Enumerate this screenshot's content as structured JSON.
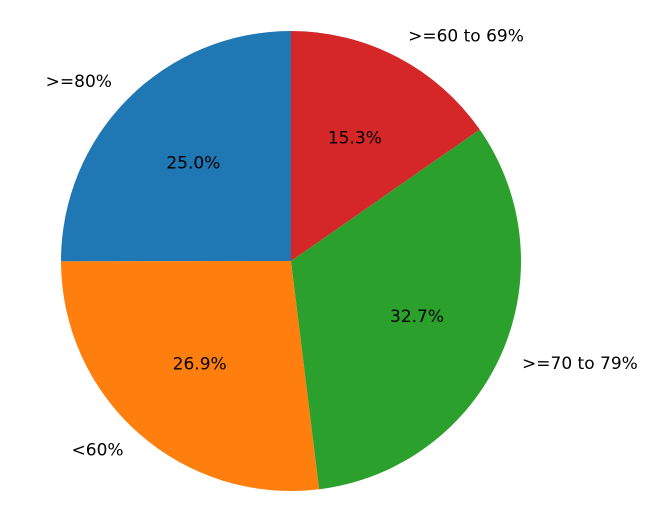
{
  "chart_data": {
    "type": "pie",
    "categories": [
      ">=80%",
      "<60%",
      ">=70 to 79%",
      ">=60 to 69%"
    ],
    "values": [
      25.0,
      26.9,
      32.7,
      15.3
    ],
    "value_labels": [
      "25.0%",
      "26.9%",
      "32.7%",
      "15.3%"
    ],
    "colors": [
      "#1f77b4",
      "#ff7f0e",
      "#2ca02c",
      "#d62728"
    ]
  }
}
